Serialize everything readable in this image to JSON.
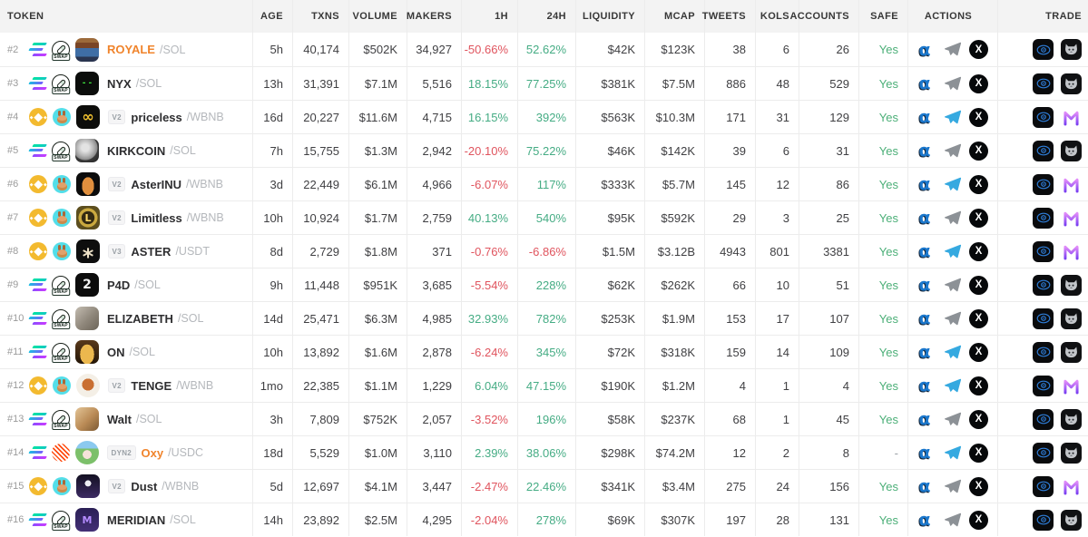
{
  "colors": {
    "positive": "#45AC84",
    "negative": "#E0545E",
    "safe_green": "#4CAF78",
    "accent_orange": "#F0842C",
    "telegram_active": "#35A9E0",
    "telegram_inactive": "#8C9196",
    "eye_blue": "#2E7CD6",
    "maestro_purple_top": "#E18CF9",
    "maestro_purple_bottom": "#7B3FF2"
  },
  "icons": {
    "alpha_glyph": "α",
    "x_glyph": "X",
    "swap_badge": "SWAP"
  },
  "columns": [
    {
      "label": "TOKEN"
    },
    {
      "label": "AGE"
    },
    {
      "label": "TXNS"
    },
    {
      "label": "VOLUME"
    },
    {
      "label": "MAKERS"
    },
    {
      "label": "1H"
    },
    {
      "label": "24H"
    },
    {
      "label": "LIQUIDITY"
    },
    {
      "label": "MCAP"
    },
    {
      "label": "TWEETS"
    },
    {
      "label": "KOLS"
    },
    {
      "label": "ACCOUNTS"
    },
    {
      "label": "SAFE"
    },
    {
      "label": "ACTIONS"
    },
    {
      "label": "TRADE"
    }
  ],
  "rows": [
    {
      "rank": "#2",
      "chain": "solana",
      "dex": "pumpswap",
      "badge": "",
      "name": "ROYALE",
      "name_color": "#F0842C",
      "pair": "/SOL",
      "logo": {
        "bg": "linear-gradient(180deg,#9c6a3a 0%,#9c6a3a 20%,#7a4526 20%,#7a4526 42%,#3f6ea5 42%,#3f6ea5 78%,#2a3550 78%)",
        "glyph": "",
        "fg": "",
        "gsize": 10,
        "round": false
      },
      "age": "5h",
      "txns": "40,174",
      "volume": "$502K",
      "makers": "34,927",
      "h1": "-50.66%",
      "h24": "52.62%",
      "liquidity": "$42K",
      "mcap": "$123K",
      "tweets": "38",
      "kols": "6",
      "accounts": "26",
      "safe": "Yes",
      "telegram": "inactive",
      "trade_bot": "trojan"
    },
    {
      "rank": "#3",
      "chain": "solana",
      "dex": "pumpswap",
      "badge": "",
      "name": "NYX",
      "pair": "/SOL",
      "logo": {
        "bg": "#0b0d0b",
        "glyph": "- -",
        "fg": "#3ee43e",
        "gsize": 9,
        "round": false
      },
      "age": "13h",
      "txns": "31,391",
      "volume": "$7.1M",
      "makers": "5,516",
      "h1": "18.15%",
      "h24": "77.25%",
      "liquidity": "$381K",
      "mcap": "$7.5M",
      "tweets": "886",
      "kols": "48",
      "accounts": "529",
      "safe": "Yes",
      "telegram": "inactive",
      "trade_bot": "trojan"
    },
    {
      "rank": "#4",
      "chain": "bnb",
      "dex": "pancakeswap",
      "badge": "V2",
      "name": "priceless",
      "pair": "/WBNB",
      "logo": {
        "bg": "#0d0d0b",
        "glyph": "∞",
        "fg": "#f2c230",
        "gsize": 16,
        "round": false
      },
      "age": "16d",
      "txns": "20,227",
      "volume": "$11.6M",
      "makers": "4,715",
      "h1": "16.15%",
      "h24": "392%",
      "liquidity": "$563K",
      "mcap": "$10.3M",
      "tweets": "171",
      "kols": "31",
      "accounts": "129",
      "safe": "Yes",
      "telegram": "active",
      "trade_bot": "maestro"
    },
    {
      "rank": "#5",
      "chain": "solana",
      "dex": "pumpswap",
      "badge": "",
      "name": "KIRKCOIN",
      "pair": "/SOL",
      "logo": {
        "bg": "radial-gradient(circle at 42% 38%,#e3e3e3 0 18%,#b9b9b9 40%,#8b8b8b 60%,#3a3a3a 63%,#222 100%)",
        "glyph": "",
        "fg": "",
        "gsize": 10,
        "round": false
      },
      "age": "7h",
      "txns": "15,755",
      "volume": "$1.3M",
      "makers": "2,942",
      "h1": "-20.10%",
      "h24": "75.22%",
      "liquidity": "$46K",
      "mcap": "$142K",
      "tweets": "39",
      "kols": "6",
      "accounts": "31",
      "safe": "Yes",
      "telegram": "inactive",
      "trade_bot": "trojan"
    },
    {
      "rank": "#6",
      "chain": "bnb",
      "dex": "pancakeswap",
      "badge": "V2",
      "name": "AsterINU",
      "pair": "/WBNB",
      "logo": {
        "bg": "radial-gradient(ellipse 26% 38% at 50% 58%,#e08f3e 0 99%,rgba(0,0,0,0) 100%),#0c0c0c",
        "glyph": "",
        "fg": "",
        "gsize": 10,
        "round": false
      },
      "age": "3d",
      "txns": "22,449",
      "volume": "$6.1M",
      "makers": "4,966",
      "h1": "-6.07%",
      "h24": "117%",
      "liquidity": "$333K",
      "mcap": "$5.7M",
      "tweets": "145",
      "kols": "12",
      "accounts": "86",
      "safe": "Yes",
      "telegram": "active",
      "trade_bot": "maestro"
    },
    {
      "rank": "#7",
      "chain": "bnb",
      "dex": "pancakeswap",
      "badge": "V2",
      "name": "Limitless",
      "pair": "/WBNB",
      "logo": {
        "bg": "radial-gradient(circle,#332a12 0 38%,#caa93f 40% 56%,#5c4e1e 58%)",
        "glyph": "L",
        "fg": "#ffd966",
        "gsize": 11,
        "round": false
      },
      "age": "10h",
      "txns": "10,924",
      "volume": "$1.7M",
      "makers": "2,759",
      "h1": "40.13%",
      "h24": "540%",
      "liquidity": "$95K",
      "mcap": "$592K",
      "tweets": "29",
      "kols": "3",
      "accounts": "25",
      "safe": "Yes",
      "telegram": "inactive",
      "trade_bot": "maestro"
    },
    {
      "rank": "#8",
      "chain": "bnb",
      "dex": "pancakeswap",
      "badge": "V3",
      "name": "ASTER",
      "pair": "/USDT",
      "logo": {
        "bg": "#0e0e0e",
        "glyph": "*",
        "fg": "#efe3c8",
        "gsize": 24,
        "gdy": 6,
        "round": false
      },
      "age": "8d",
      "txns": "2,729",
      "volume": "$1.8M",
      "makers": "371",
      "h1": "-0.76%",
      "h24": "-6.86%",
      "liquidity": "$1.5M",
      "mcap": "$3.12B",
      "tweets": "4943",
      "kols": "801",
      "accounts": "3381",
      "safe": "Yes",
      "telegram": "active",
      "trade_bot": "maestro"
    },
    {
      "rank": "#9",
      "chain": "solana",
      "dex": "pumpswap",
      "badge": "",
      "name": "P4D",
      "pair": "/SOL",
      "logo": {
        "bg": "#0c0c0c",
        "glyph": "2",
        "fg": "#f2f2f2",
        "gsize": 14,
        "round": false
      },
      "age": "9h",
      "txns": "11,448",
      "volume": "$951K",
      "makers": "3,685",
      "h1": "-5.54%",
      "h24": "228%",
      "liquidity": "$62K",
      "mcap": "$262K",
      "tweets": "66",
      "kols": "10",
      "accounts": "51",
      "safe": "Yes",
      "telegram": "inactive",
      "trade_bot": "trojan"
    },
    {
      "rank": "#10",
      "chain": "solana",
      "dex": "pumpswap",
      "badge": "",
      "name": "ELIZABETH",
      "pair": "/SOL",
      "logo": {
        "bg": "linear-gradient(135deg,#c4bdb2 0%,#8e867a 55%,#6b6458 100%)",
        "glyph": "",
        "fg": "",
        "gsize": 10,
        "round": false
      },
      "age": "14d",
      "txns": "25,471",
      "volume": "$6.3M",
      "makers": "4,985",
      "h1": "32.93%",
      "h24": "782%",
      "liquidity": "$253K",
      "mcap": "$1.9M",
      "tweets": "153",
      "kols": "17",
      "accounts": "107",
      "safe": "Yes",
      "telegram": "inactive",
      "trade_bot": "trojan"
    },
    {
      "rank": "#11",
      "chain": "solana",
      "dex": "pumpswap",
      "badge": "",
      "name": "ON",
      "pair": "/SOL",
      "logo": {
        "bg": "radial-gradient(ellipse 30% 42% at 50% 60%,#ecb84e 0 99%,rgba(0,0,0,0)),linear-gradient(180deg,#59391b,#241607)",
        "glyph": "",
        "fg": "",
        "gsize": 10,
        "round": false
      },
      "age": "10h",
      "txns": "13,892",
      "volume": "$1.6M",
      "makers": "2,878",
      "h1": "-6.24%",
      "h24": "345%",
      "liquidity": "$72K",
      "mcap": "$318K",
      "tweets": "159",
      "kols": "14",
      "accounts": "109",
      "safe": "Yes",
      "telegram": "active",
      "trade_bot": "trojan"
    },
    {
      "rank": "#12",
      "chain": "bnb",
      "dex": "pancakeswap",
      "badge": "V2",
      "name": "TENGE",
      "pair": "/WBNB",
      "logo": {
        "bg": "radial-gradient(circle at 50% 46%,#c96f32 0 34%,#f4efe6 35%)",
        "glyph": "",
        "fg": "",
        "gsize": 10,
        "round": true
      },
      "age": "1mo",
      "txns": "22,385",
      "volume": "$1.1M",
      "makers": "1,229",
      "h1": "6.04%",
      "h24": "47.15%",
      "liquidity": "$190K",
      "mcap": "$1.2M",
      "tweets": "4",
      "kols": "1",
      "accounts": "4",
      "safe": "Yes",
      "telegram": "active",
      "trade_bot": "maestro"
    },
    {
      "rank": "#13",
      "chain": "solana",
      "dex": "pumpswap",
      "badge": "",
      "name": "Walt",
      "pair": "/SOL",
      "logo": {
        "bg": "linear-gradient(135deg,#e3c497 0%,#b98a55 55%,#7c5a33 100%)",
        "glyph": "",
        "fg": "",
        "gsize": 10,
        "round": false
      },
      "age": "3h",
      "txns": "7,809",
      "volume": "$752K",
      "makers": "2,057",
      "h1": "-3.52%",
      "h24": "196%",
      "liquidity": "$58K",
      "mcap": "$237K",
      "tweets": "68",
      "kols": "1",
      "accounts": "45",
      "safe": "Yes",
      "telegram": "inactive",
      "trade_bot": "trojan"
    },
    {
      "rank": "#14",
      "chain": "solana",
      "dex": "meteora",
      "badge": "DYN2",
      "name": "Oxy",
      "name_color": "#F0842C",
      "pair": "/USDC",
      "logo": {
        "bg": "radial-gradient(circle at 50% 58%,#f6e3da 0 24%,rgba(0,0,0,0) 25%),linear-gradient(180deg,#8bc9ef 0 32%,#7cc06a 32%)",
        "glyph": "",
        "fg": "",
        "gsize": 10,
        "round": true
      },
      "age": "18d",
      "txns": "5,529",
      "volume": "$1.0M",
      "makers": "3,110",
      "h1": "2.39%",
      "h24": "38.06%",
      "liquidity": "$298K",
      "mcap": "$74.2M",
      "tweets": "12",
      "kols": "2",
      "accounts": "8",
      "safe": "-",
      "telegram": "active",
      "trade_bot": "trojan"
    },
    {
      "rank": "#15",
      "chain": "bnb",
      "dex": "pancakeswap",
      "badge": "V2",
      "name": "Dust",
      "pair": "/WBNB",
      "logo": {
        "bg": "radial-gradient(circle at 50% 38%,#ecedf2 0 16%,rgba(0,0,0,0) 17%),linear-gradient(180deg,#131022,#3c2a63)",
        "glyph": "",
        "fg": "",
        "gsize": 10,
        "round": false
      },
      "age": "5d",
      "txns": "12,697",
      "volume": "$4.1M",
      "makers": "3,447",
      "h1": "-2.47%",
      "h24": "22.46%",
      "liquidity": "$341K",
      "mcap": "$3.4M",
      "tweets": "275",
      "kols": "24",
      "accounts": "156",
      "safe": "Yes",
      "telegram": "inactive",
      "trade_bot": "maestro"
    },
    {
      "rank": "#16",
      "chain": "solana",
      "dex": "pumpswap",
      "badge": "",
      "name": "MERIDIAN",
      "pair": "/SOL",
      "logo": {
        "bg": "linear-gradient(180deg,#2a1f55,#433076)",
        "glyph": "M",
        "fg": "#b48cff",
        "gsize": 11,
        "round": false
      },
      "age": "14h",
      "txns": "23,892",
      "volume": "$2.5M",
      "makers": "4,295",
      "h1": "-2.04%",
      "h24": "278%",
      "liquidity": "$69K",
      "mcap": "$307K",
      "tweets": "197",
      "kols": "28",
      "accounts": "131",
      "safe": "Yes",
      "telegram": "inactive",
      "trade_bot": "trojan"
    }
  ]
}
